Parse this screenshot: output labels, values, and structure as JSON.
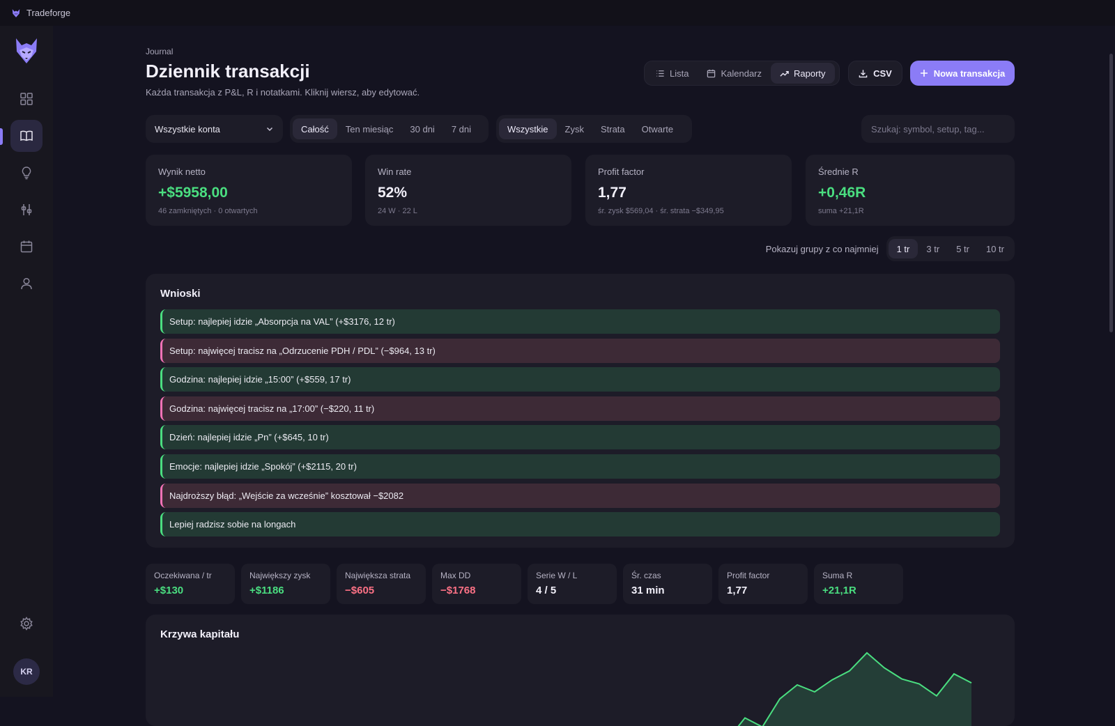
{
  "app": {
    "title": "Tradeforge"
  },
  "sidebar": {
    "items": [
      {
        "icon": "dashboard-grid-icon"
      },
      {
        "icon": "journal-book-icon",
        "active": true
      },
      {
        "icon": "lightbulb-icon"
      },
      {
        "icon": "sliders-icon"
      },
      {
        "icon": "calendar-icon"
      },
      {
        "icon": "user-icon"
      }
    ],
    "settings_icon": "gear-icon",
    "avatar_initials": "KR"
  },
  "header": {
    "eyebrow": "Journal",
    "title": "Dziennik transakcji",
    "subtitle": "Każda transakcja z P&L, R i notatkami. Kliknij wiersz, aby edytować.",
    "views": [
      {
        "label": "Lista",
        "icon": "list-icon"
      },
      {
        "label": "Kalendarz",
        "icon": "calendar-icon"
      },
      {
        "label": "Raporty",
        "icon": "trend-up-icon",
        "active": true
      }
    ],
    "csv_label": "CSV",
    "new_label": "Nowa transakcja"
  },
  "filters": {
    "account": "Wszystkie konta",
    "periods": [
      "Całość",
      "Ten miesiąc",
      "30 dni",
      "7 dni"
    ],
    "active_period": "Całość",
    "results": [
      "Wszystkie",
      "Zysk",
      "Strata",
      "Otwarte"
    ],
    "active_result": "Wszystkie",
    "search_placeholder": "Szukaj: symbol, setup, tag..."
  },
  "stats": [
    {
      "label": "Wynik netto",
      "value": "+$5958,00",
      "note": "46 zamkniętych · 0 otwartych",
      "tone": "pos"
    },
    {
      "label": "Win rate",
      "value": "52%",
      "note": "24 W · 22 L",
      "tone": "neutral"
    },
    {
      "label": "Profit factor",
      "value": "1,77",
      "note": "śr. zysk $569,04 · śr. strata −$349,95",
      "tone": "neutral"
    },
    {
      "label": "Średnie R",
      "value": "+0,46R",
      "note": "suma +21,1R",
      "tone": "pos"
    }
  ],
  "grouping": {
    "label": "Pokazuj grupy z co najmniej",
    "options": [
      "1 tr",
      "3 tr",
      "5 tr",
      "10 tr"
    ],
    "active": "1 tr"
  },
  "insights": {
    "title": "Wnioski",
    "items": [
      {
        "text": "Setup: najlepiej idzie „Absorpcja na VAL” (+$3176, 12 tr)",
        "tone": "pos"
      },
      {
        "text": "Setup: najwięcej tracisz na „Odrzucenie PDH / PDL” (−$964, 13 tr)",
        "tone": "neg"
      },
      {
        "text": "Godzina: najlepiej idzie „15:00” (+$559, 17 tr)",
        "tone": "pos"
      },
      {
        "text": "Godzina: najwięcej tracisz na „17:00” (−$220, 11 tr)",
        "tone": "neg"
      },
      {
        "text": "Dzień: najlepiej idzie „Pn” (+$645, 10 tr)",
        "tone": "pos"
      },
      {
        "text": "Emocje: najlepiej idzie „Spokój” (+$2115, 20 tr)",
        "tone": "pos"
      },
      {
        "text": "Najdroższy błąd: „Wejście za wcześnie” kosztował −$2082",
        "tone": "neg"
      },
      {
        "text": "Lepiej radzisz sobie na longach",
        "tone": "pos"
      }
    ]
  },
  "mini_stats": [
    {
      "label": "Oczekiwana / tr",
      "value": "+$130",
      "tone": "pos"
    },
    {
      "label": "Największy zysk",
      "value": "+$1186",
      "tone": "pos"
    },
    {
      "label": "Największa strata",
      "value": "−$605",
      "tone": "neg"
    },
    {
      "label": "Max DD",
      "value": "−$1768",
      "tone": "neg"
    },
    {
      "label": "Serie W / L",
      "value": "4 / 5",
      "tone": "neutral"
    },
    {
      "label": "Śr. czas",
      "value": "31 min",
      "tone": "neutral"
    },
    {
      "label": "Profit factor",
      "value": "1,77",
      "tone": "neutral"
    },
    {
      "label": "Suma R",
      "value": "+21,1R",
      "tone": "pos"
    }
  ],
  "equity_chart": {
    "title": "Krzywa kapitału",
    "line_color": "#4ade80",
    "values": [
      5200,
      5420,
      5330,
      5610,
      5750,
      5680,
      5800,
      5890,
      6070,
      5920,
      5810,
      5760,
      5640,
      5860,
      5770
    ]
  },
  "colors": {
    "accent": "#8b7cf6",
    "positive": "#4ade80",
    "negative": "#fb7185"
  }
}
